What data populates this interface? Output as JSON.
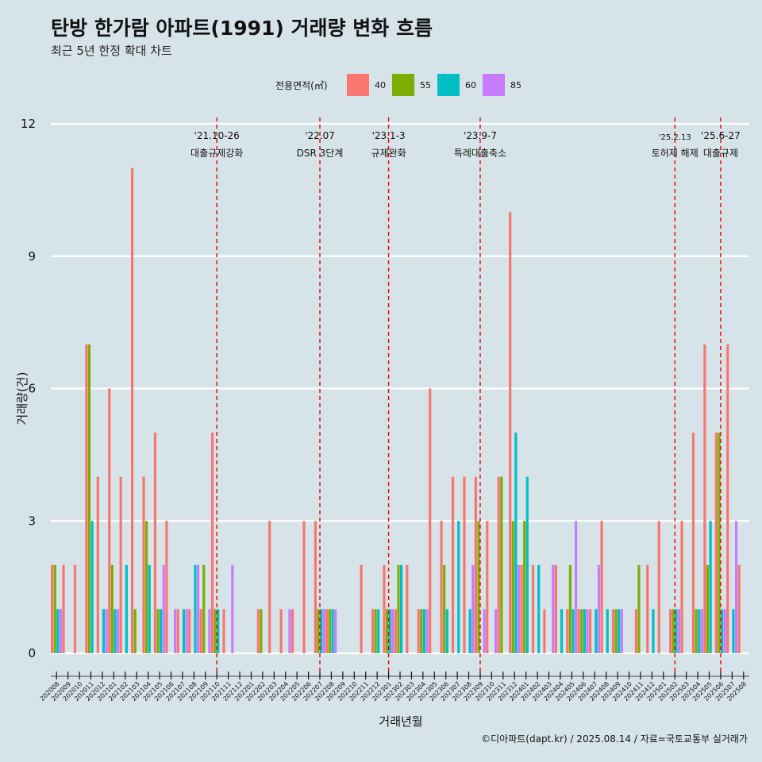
{
  "chart_data": {
    "type": "bar",
    "title": "탄방 한가람 아파트(1991) 거래량 변화 흐름",
    "subtitle": "최근 5년 한정 확대 차트",
    "xlabel": "거래년월",
    "ylabel": "거래량(건)",
    "ylim": [
      0,
      12
    ],
    "yticks": [
      "0",
      "3",
      "6",
      "9",
      "12"
    ],
    "caption": "©디아파트(dapt.kr) / 2025.08.14 / 자료=국토교통부 실거래가",
    "legend": {
      "title": "전용면적(㎡)",
      "placement": "top",
      "entries": [
        {
          "name": "40",
          "color": "#F8766D"
        },
        {
          "name": "55",
          "color": "#7CAE00"
        },
        {
          "name": "60",
          "color": "#00BFC4"
        },
        {
          "name": "85",
          "color": "#C77CFF"
        }
      ]
    },
    "categories": [
      "202008",
      "202009",
      "202010",
      "202011",
      "202012",
      "202101",
      "202102",
      "202103",
      "202104",
      "202105",
      "202106",
      "202107",
      "202108",
      "202109",
      "202110",
      "202111",
      "202112",
      "202201",
      "202202",
      "202203",
      "202204",
      "202205",
      "202206",
      "202207",
      "202208",
      "202209",
      "202210",
      "202211",
      "202212",
      "202301",
      "202302",
      "202303",
      "202304",
      "202305",
      "202306",
      "202307",
      "202308",
      "202309",
      "202310",
      "202311",
      "202312",
      "202401",
      "202402",
      "202403",
      "202404",
      "202405",
      "202406",
      "202407",
      "202408",
      "202409",
      "202410",
      "202411",
      "202412",
      "202501",
      "202502",
      "202503",
      "202504",
      "202505",
      "202506",
      "202507",
      "202508"
    ],
    "series": [
      {
        "name": "40",
        "values": [
          2,
          2,
          2,
          7,
          4,
          6,
          4,
          11,
          4,
          5,
          3,
          1,
          1,
          1,
          5,
          1,
          0,
          0,
          1,
          3,
          1,
          1,
          3,
          3,
          1,
          0,
          0,
          2,
          1,
          2,
          1,
          2,
          1,
          6,
          3,
          4,
          4,
          4,
          3,
          4,
          10,
          2,
          2,
          1,
          2,
          1,
          1,
          1,
          3,
          1,
          0,
          1,
          2,
          3,
          1,
          3,
          5,
          7,
          5,
          7,
          2
        ]
      },
      {
        "name": "55",
        "values": [
          2,
          0,
          0,
          7,
          0,
          2,
          0,
          1,
          3,
          1,
          0,
          0,
          0,
          2,
          1,
          0,
          0,
          0,
          1,
          0,
          0,
          0,
          0,
          1,
          1,
          0,
          0,
          0,
          1,
          1,
          2,
          0,
          1,
          0,
          2,
          0,
          0,
          3,
          0,
          4,
          3,
          3,
          0,
          0,
          0,
          2,
          1,
          0,
          0,
          1,
          0,
          2,
          0,
          0,
          1,
          0,
          1,
          2,
          5,
          0,
          0
        ]
      },
      {
        "name": "60",
        "values": [
          1,
          0,
          0,
          3,
          1,
          1,
          2,
          0,
          2,
          1,
          0,
          1,
          2,
          0,
          1,
          0,
          0,
          0,
          0,
          0,
          0,
          0,
          0,
          1,
          1,
          0,
          0,
          0,
          1,
          1,
          2,
          0,
          1,
          0,
          1,
          3,
          1,
          0,
          0,
          0,
          5,
          4,
          2,
          0,
          1,
          1,
          1,
          1,
          1,
          1,
          0,
          0,
          1,
          0,
          1,
          0,
          1,
          3,
          1,
          1,
          0
        ]
      },
      {
        "name": "85",
        "values": [
          1,
          0,
          0,
          0,
          1,
          1,
          0,
          0,
          0,
          2,
          1,
          1,
          2,
          1,
          0,
          2,
          0,
          0,
          0,
          0,
          1,
          0,
          0,
          1,
          1,
          0,
          0,
          0,
          0,
          1,
          0,
          0,
          1,
          0,
          0,
          0,
          2,
          1,
          1,
          0,
          2,
          0,
          0,
          2,
          0,
          3,
          1,
          2,
          0,
          1,
          0,
          0,
          0,
          0,
          1,
          0,
          1,
          0,
          1,
          3,
          0
        ]
      }
    ],
    "annotations": [
      {
        "category": "202110",
        "date": "'21.10-26",
        "label": "대출규제강화"
      },
      {
        "category": "202207",
        "date": "'22.07",
        "label": "DSR 3단계"
      },
      {
        "category": "202301",
        "date": "'23.1-3",
        "label": "규제완화"
      },
      {
        "category": "202309",
        "date": "'23.9-7",
        "label": "특례대출축소"
      },
      {
        "category": "202502",
        "date": "'25.2.13",
        "label": "토허제 해제"
      },
      {
        "category": "202506",
        "date": "'25.6-27",
        "label": "대출규제"
      }
    ]
  }
}
